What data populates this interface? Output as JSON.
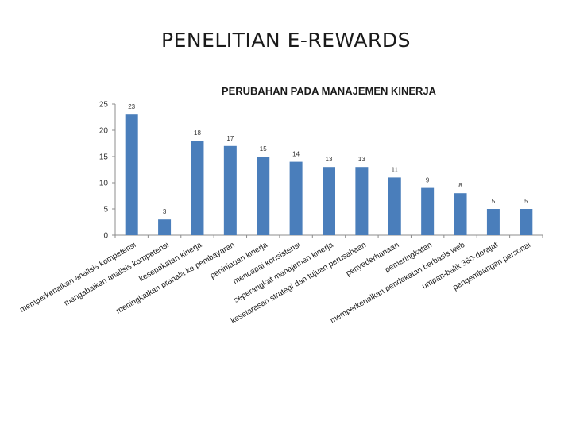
{
  "slide": {
    "title": "PENELITIAN E-REWARDS"
  },
  "chart_data": {
    "type": "bar",
    "title": "PERUBAHAN PADA MANAJEMEN KINERJA",
    "xlabel": "",
    "ylabel": "",
    "ylim": [
      0,
      25
    ],
    "yticks": [
      0,
      5,
      10,
      15,
      20,
      25
    ],
    "grid": false,
    "legend": "none",
    "bar_color": "#4a7ebb",
    "categories": [
      "memperkenalkan analisis kompetensi",
      "mengabaikan analisis kompetensi",
      "kesepakatan kinerja",
      "meningkatkan pranala ke pembayaran",
      "peninjauan kinerja",
      "mencapai konsistensi",
      "seperangkat manajemen kinerja",
      "keselarasan strategi dan tujuan perusahaan",
      "penyederhanaan",
      "pemeringkatan",
      "memperkenalkan pendekatan berbasis web",
      "umpan-balik 360-derajat",
      "pengembangan personal"
    ],
    "values": [
      23,
      3,
      18,
      17,
      15,
      14,
      13,
      13,
      11,
      9,
      8,
      5,
      5
    ]
  }
}
